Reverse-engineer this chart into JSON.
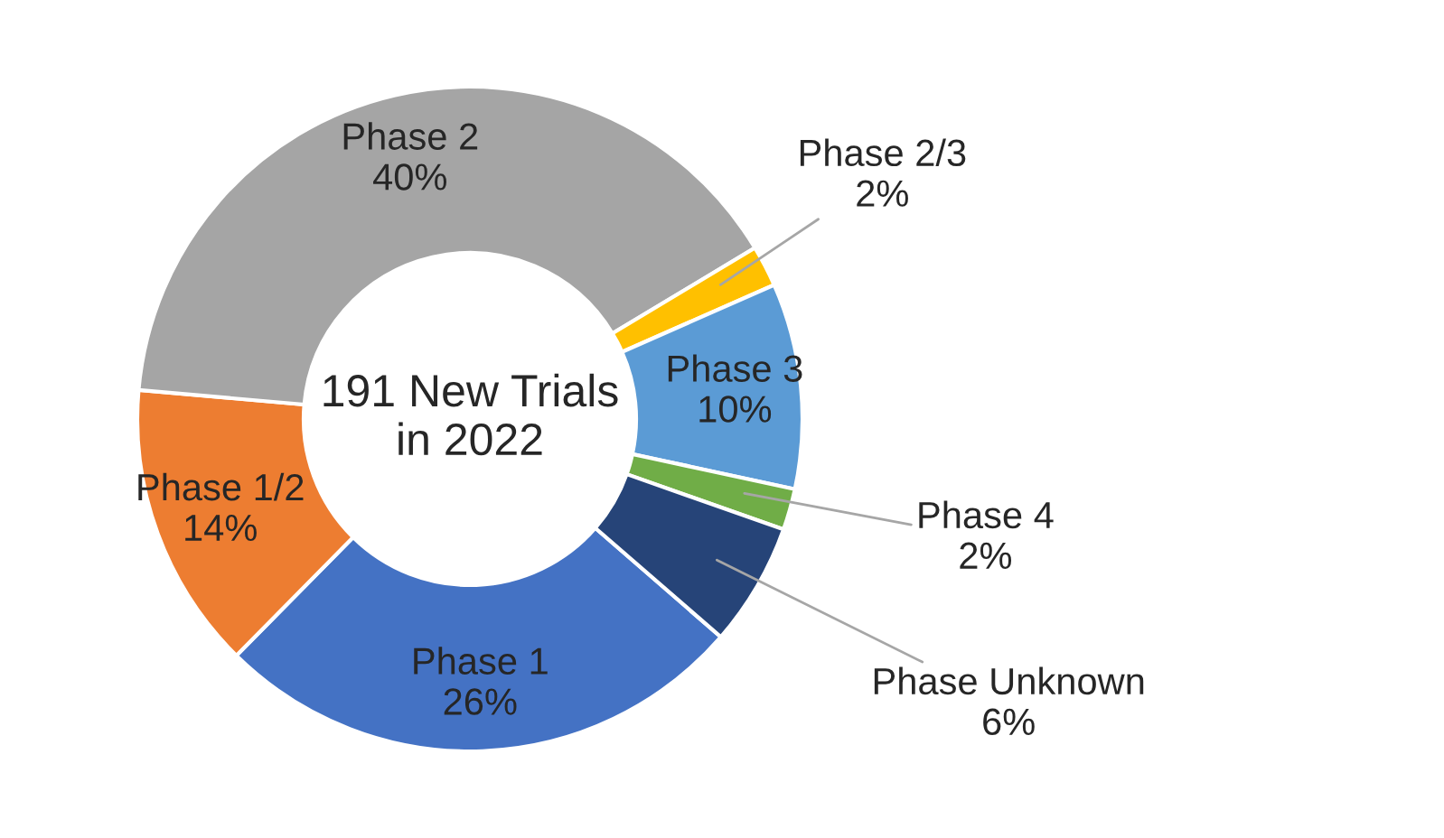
{
  "chart_data": {
    "type": "donut",
    "categories": [
      "Phase 1",
      "Phase 1/2",
      "Phase 2",
      "Phase 2/3",
      "Phase 3",
      "Phase 4",
      "Phase Unknown"
    ],
    "values": [
      26,
      14,
      40,
      2,
      10,
      2,
      6
    ],
    "value_labels": [
      "26%",
      "14%",
      "40%",
      "2%",
      "10%",
      "2%",
      "6%"
    ],
    "colors": [
      "#4472c4",
      "#ed7d31",
      "#a5a5a5",
      "#ffc000",
      "#5b9bd5",
      "#70ad47",
      "#264478"
    ],
    "annotations": [
      "191 New Trials\nin 2022"
    ],
    "legend": false
  }
}
